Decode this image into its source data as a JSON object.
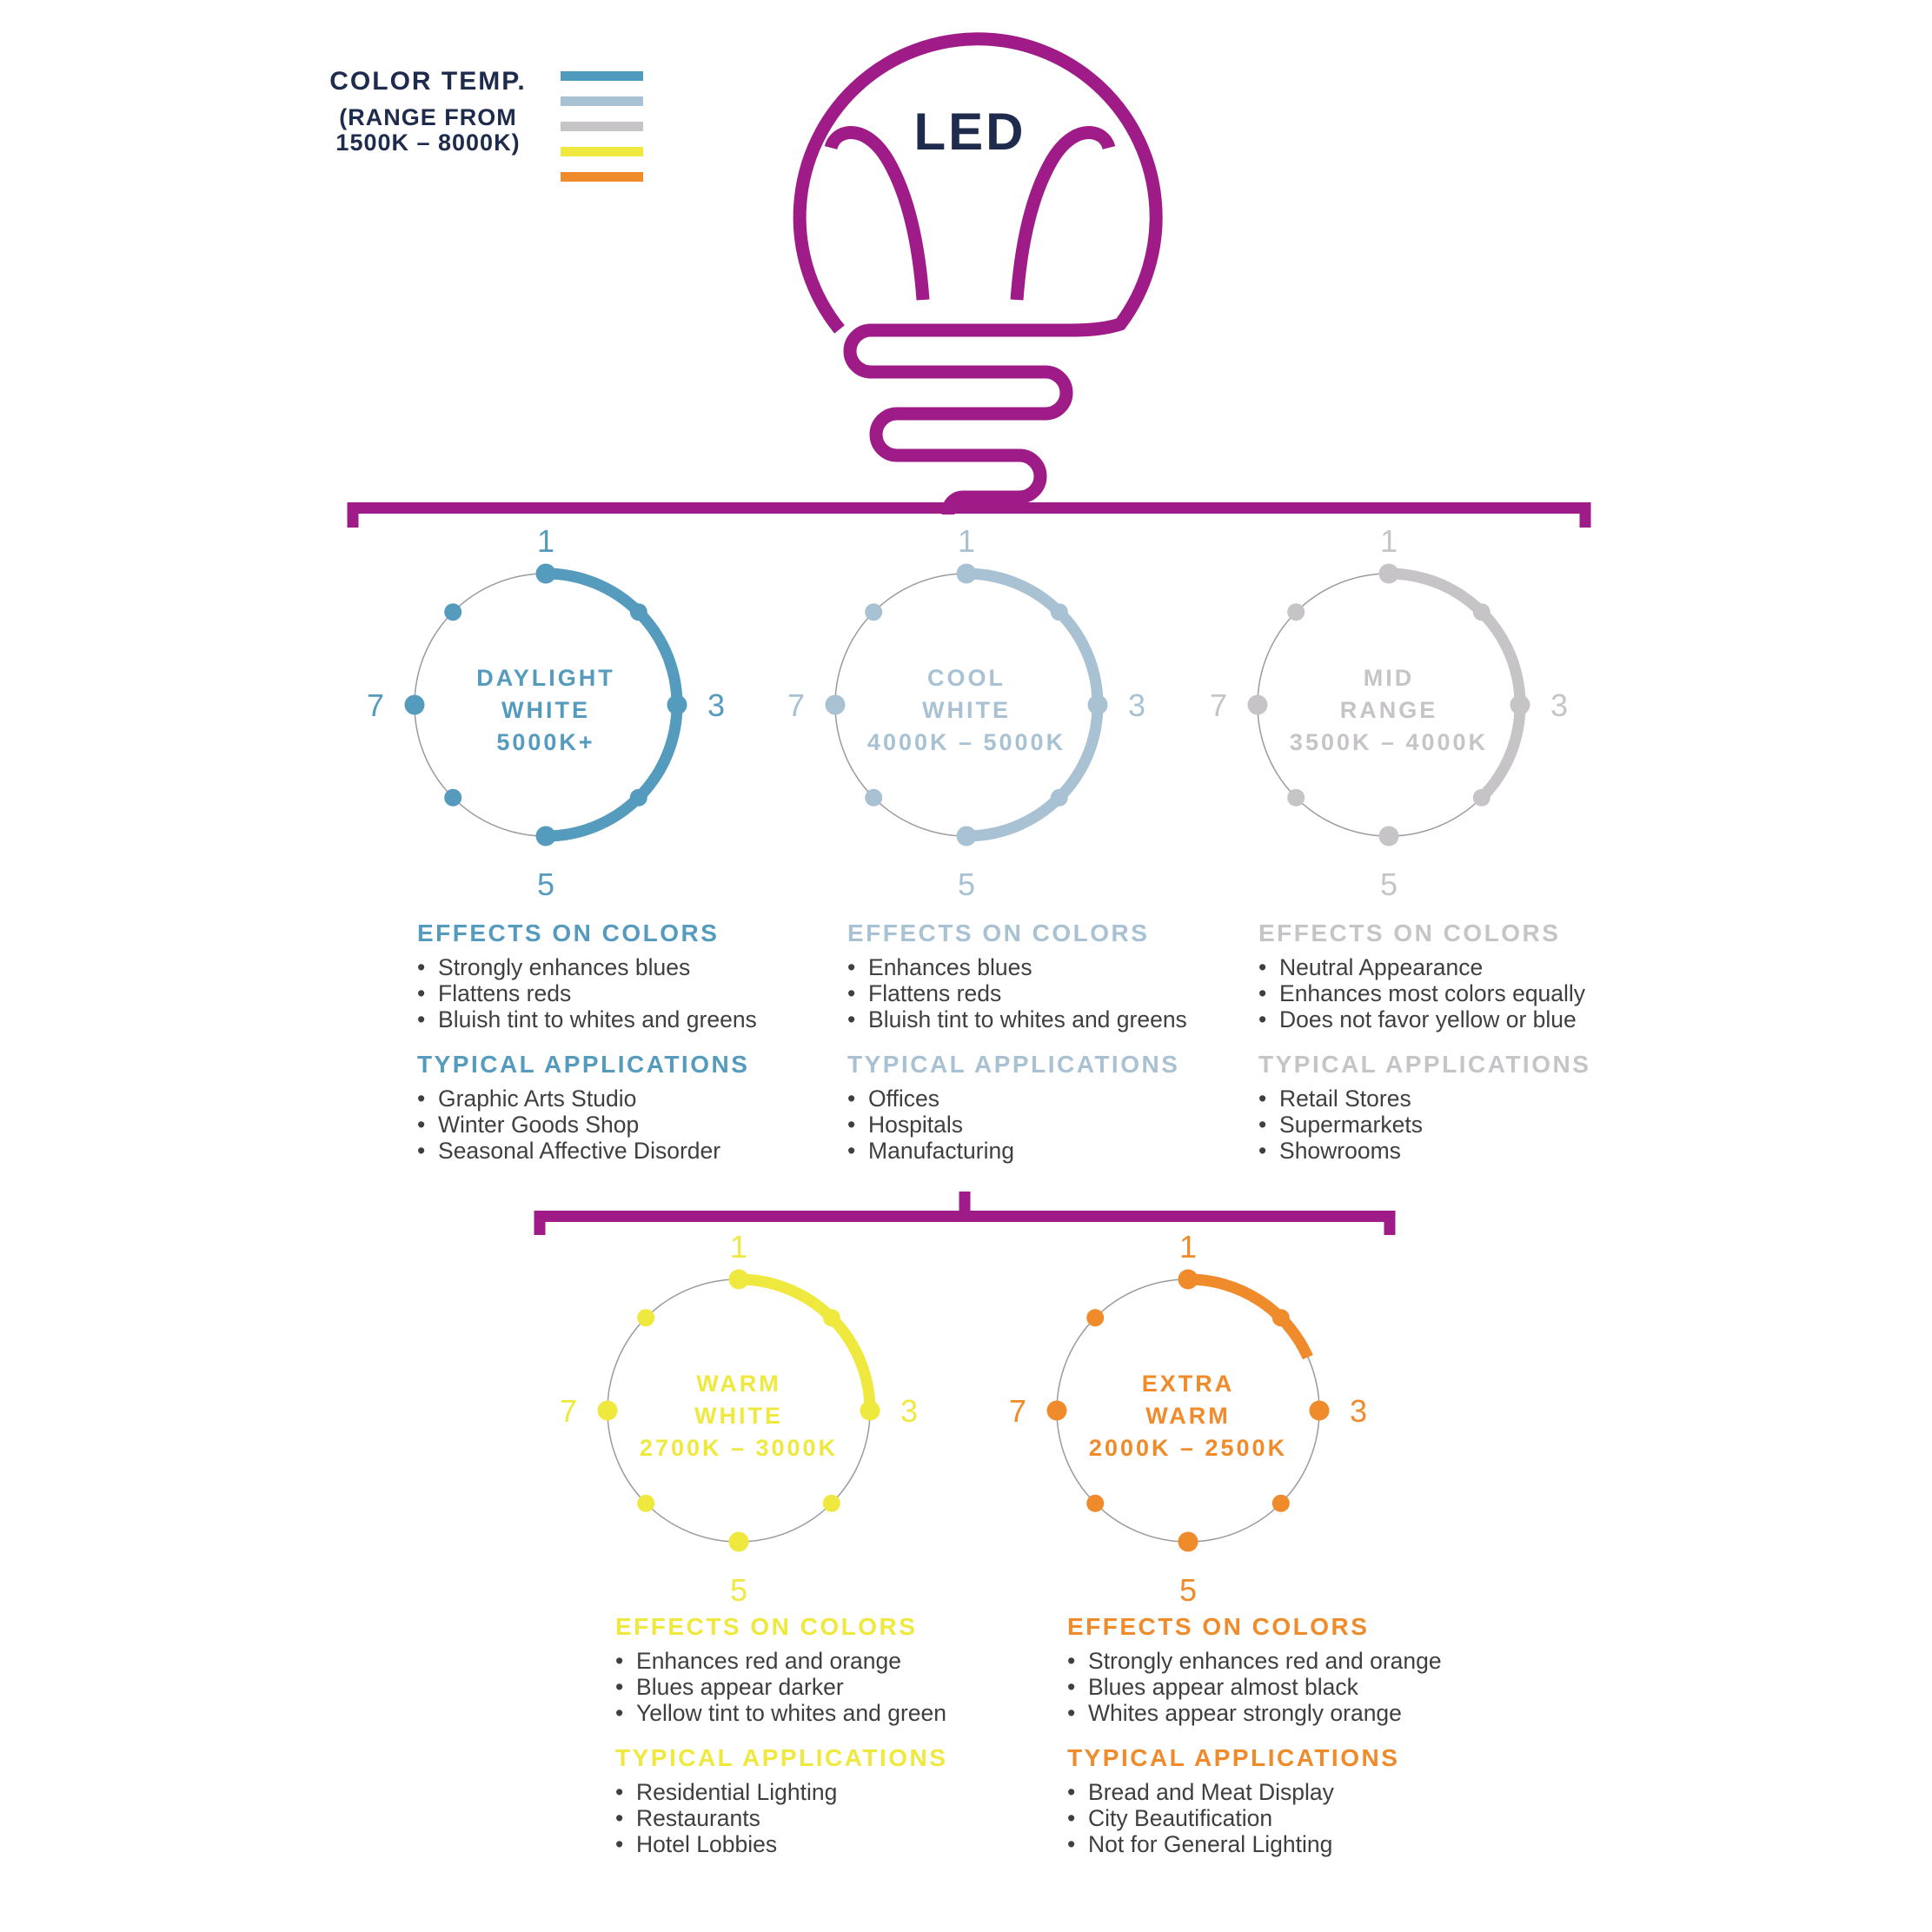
{
  "colors": {
    "magenta": "#9e1b88",
    "navy": "#1e2b4d",
    "body_text": "#3f3f3f",
    "thin_circle": "#9b9b9b"
  },
  "legend": {
    "title": "COLOR TEMP.",
    "subtitle_line1": "(RANGE FROM",
    "subtitle_line2": "1500K – 8000K)",
    "bars": [
      "#4e9bbd",
      "#a8c2d3",
      "#c7c4c7",
      "#efe93f",
      "#ef8b2a"
    ]
  },
  "bulb": {
    "label": "LED"
  },
  "scale_labels": [
    "1",
    "3",
    "5",
    "7"
  ],
  "section_headers": {
    "effects": "EFFECTS ON COLORS",
    "applications": "TYPICAL APPLICATIONS"
  },
  "categories": [
    {
      "name_line1": "DAYLIGHT",
      "name_line2": "WHITE",
      "range": "5000K+",
      "color": "#549bbe",
      "arc_degrees": 180,
      "effects": [
        "Strongly enhances blues",
        "Flattens reds",
        "Bluish tint to whites and greens"
      ],
      "applications": [
        "Graphic Arts Studio",
        "Winter Goods Shop",
        "Seasonal Affective Disorder"
      ]
    },
    {
      "name_line1": "COOL",
      "name_line2": "WHITE",
      "range": "4000K – 5000K",
      "color": "#a8c2d3",
      "arc_degrees": 180,
      "effects": [
        "Enhances blues",
        "Flattens reds",
        "Bluish tint to whites and greens"
      ],
      "applications": [
        "Offices",
        "Hospitals",
        "Manufacturing"
      ]
    },
    {
      "name_line1": "MID",
      "name_line2": "RANGE",
      "range": "3500K – 4000K",
      "color": "#c7c4c7",
      "arc_degrees": 135,
      "effects": [
        "Neutral Appearance",
        "Enhances most colors equally",
        "Does not favor yellow or blue"
      ],
      "applications": [
        "Retail Stores",
        "Supermarkets",
        "Showrooms"
      ]
    },
    {
      "name_line1": "WARM",
      "name_line2": "WHITE",
      "range": "2700K – 3000K",
      "color": "#efe93f",
      "arc_degrees": 90,
      "effects": [
        "Enhances red and orange",
        "Blues appear darker",
        "Yellow tint to whites and green"
      ],
      "applications": [
        "Residential Lighting",
        "Restaurants",
        "Hotel Lobbies"
      ]
    },
    {
      "name_line1": "EXTRA",
      "name_line2": "WARM",
      "range": "2000K – 2500K",
      "color": "#ef8b2a",
      "arc_degrees": 66,
      "effects": [
        "Strongly enhances red and orange",
        "Blues appear almost black",
        "Whites appear strongly orange"
      ],
      "applications": [
        "Bread and Meat Display",
        "City Beautification",
        "Not for General Lighting"
      ]
    }
  ]
}
